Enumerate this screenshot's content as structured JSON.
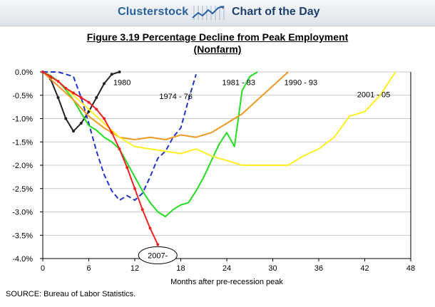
{
  "header": {
    "brand": "Clusterstock",
    "tagline": "Chart of the Day"
  },
  "source": "SOURCE: Bureau of Labor Statistics.",
  "chart_data": {
    "type": "line",
    "title_line1": "Figure 3.19   Percentage Decline from Peak Employment",
    "title_line2": "(Nonfarm)",
    "xlabel": "Months after pre-recession peak",
    "ylabel": "",
    "xlim": [
      0,
      48
    ],
    "ylim": [
      -4.0,
      0.0
    ],
    "x_ticks": [
      0,
      6,
      12,
      18,
      24,
      30,
      36,
      42,
      48
    ],
    "y_ticks": [
      0.0,
      -0.5,
      -1.0,
      -1.5,
      -2.0,
      -2.5,
      -3.0,
      -3.5,
      -4.0
    ],
    "y_tick_labels": [
      "0.0%",
      "-0.5%",
      "-1.0%",
      "-1.5%",
      "-2.0%",
      "-2.5%",
      "-3.0%",
      "-3.5%",
      "-4.0%"
    ],
    "grid": "horizontal",
    "series": [
      {
        "name": "1980",
        "color": "#222222",
        "dash": "solid",
        "markers": true,
        "x": [
          0,
          1,
          2,
          3,
          4,
          5,
          6,
          7,
          8,
          9,
          10
        ],
        "y": [
          0,
          -0.15,
          -0.55,
          -1.0,
          -1.27,
          -1.1,
          -0.85,
          -0.55,
          -0.25,
          -0.05,
          0.0
        ]
      },
      {
        "name": "1974 - 76",
        "color": "#2233cc",
        "dash": "dashed",
        "markers": false,
        "x": [
          0,
          2,
          4,
          5,
          6,
          7,
          8,
          9,
          10,
          11,
          12,
          13,
          14,
          15,
          16,
          17,
          18,
          19,
          20
        ],
        "y": [
          0,
          0,
          -0.1,
          -0.55,
          -1.1,
          -1.7,
          -2.2,
          -2.55,
          -2.75,
          -2.65,
          -2.75,
          -2.6,
          -2.25,
          -1.85,
          -1.7,
          -1.4,
          -1.2,
          -0.6,
          -0.05
        ]
      },
      {
        "name": "1981 - 83",
        "color": "#22dd22",
        "dash": "solid",
        "markers": false,
        "x": [
          0,
          1,
          2,
          3,
          4,
          5,
          6,
          7,
          8,
          9,
          10,
          11,
          12,
          13,
          14,
          15,
          16,
          17,
          18,
          19,
          20,
          21,
          22,
          23,
          24,
          25,
          26,
          27,
          28
        ],
        "y": [
          0,
          -0.08,
          -0.2,
          -0.38,
          -0.6,
          -0.88,
          -1.15,
          -1.25,
          -1.4,
          -1.5,
          -1.65,
          -1.95,
          -2.25,
          -2.55,
          -2.8,
          -3.0,
          -3.1,
          -2.95,
          -2.85,
          -2.8,
          -2.55,
          -2.25,
          -1.9,
          -1.55,
          -1.3,
          -1.6,
          -0.4,
          -0.1,
          0.0
        ]
      },
      {
        "name": "1990 - 93",
        "color": "#ee9922",
        "dash": "solid",
        "markers": false,
        "x": [
          0,
          2,
          4,
          6,
          8,
          10,
          12,
          14,
          16,
          18,
          20,
          22,
          24,
          26,
          28,
          30,
          32
        ],
        "y": [
          0,
          -0.3,
          -0.6,
          -0.95,
          -1.2,
          -1.4,
          -1.45,
          -1.4,
          -1.45,
          -1.35,
          -1.4,
          -1.3,
          -1.1,
          -0.9,
          -0.6,
          -0.3,
          0.0
        ]
      },
      {
        "name": "2001 - 05",
        "color": "#ffee22",
        "dash": "solid",
        "markers": false,
        "x": [
          0,
          2,
          4,
          6,
          8,
          10,
          12,
          14,
          16,
          18,
          20,
          22,
          24,
          26,
          28,
          30,
          32,
          34,
          36,
          38,
          40,
          42,
          44,
          46
        ],
        "y": [
          0,
          -0.2,
          -0.5,
          -0.8,
          -1.1,
          -1.4,
          -1.6,
          -1.65,
          -1.7,
          -1.75,
          -1.65,
          -1.8,
          -1.9,
          -2.0,
          -2.0,
          -2.0,
          -2.0,
          -1.8,
          -1.65,
          -1.4,
          -0.95,
          -0.85,
          -0.5,
          0.0
        ]
      },
      {
        "name": "2007-",
        "color": "#ee2222",
        "dash": "solid",
        "markers": true,
        "x": [
          0,
          1,
          2,
          3,
          4,
          5,
          6,
          7,
          8,
          9,
          10,
          11,
          12,
          13,
          14,
          15
        ],
        "y": [
          0,
          -0.1,
          -0.2,
          -0.35,
          -0.45,
          -0.55,
          -0.65,
          -0.8,
          -1.0,
          -1.3,
          -1.65,
          -2.05,
          -2.5,
          -2.95,
          -3.35,
          -3.7
        ]
      }
    ],
    "annotations": [
      {
        "text": "1980",
        "x": 9.2,
        "y": -0.22,
        "circled": false
      },
      {
        "text": "1974 - 76",
        "x": 15.2,
        "y": -0.52,
        "circled": false
      },
      {
        "text": "1981 - 83",
        "x": 23.4,
        "y": -0.22,
        "circled": false
      },
      {
        "text": "1990 - 93",
        "x": 31.5,
        "y": -0.22,
        "circled": false
      },
      {
        "text": "2001 - 05",
        "x": 41.0,
        "y": -0.48,
        "circled": false
      },
      {
        "text": "2007-",
        "x": 15.0,
        "y": -3.93,
        "circled": true
      }
    ]
  }
}
